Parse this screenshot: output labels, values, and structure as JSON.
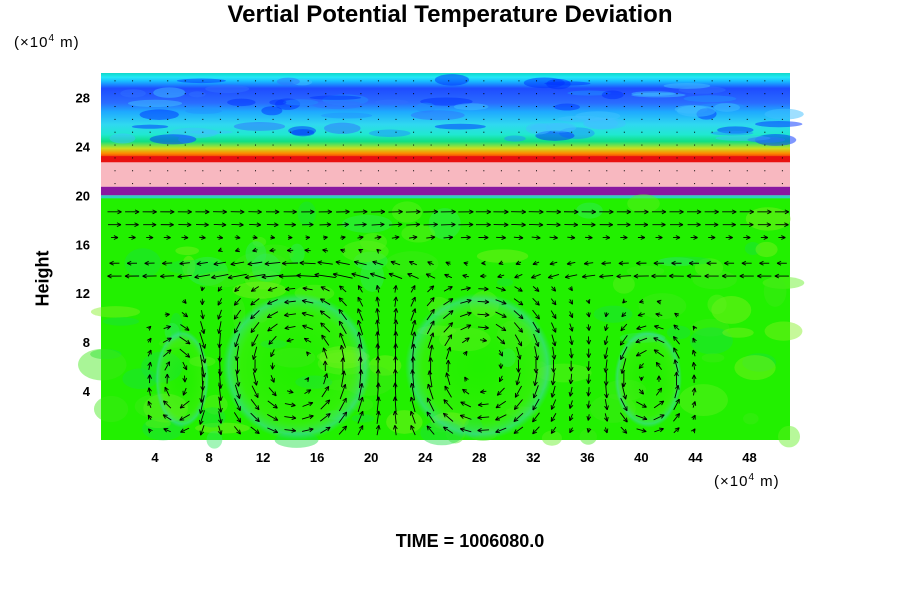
{
  "chart_data": {
    "type": "heatmap",
    "title": "Vertial Potential Temperature Deviation",
    "ylabel": "Height",
    "xlabel": "",
    "y_unit_prefix": "(×10",
    "y_unit_exp": "4",
    "y_unit_suffix": " m)",
    "x_unit_prefix": "(×10",
    "x_unit_exp": "4",
    "x_unit_suffix": " m)",
    "footer": "TIME = 1006080.0",
    "xlim": [
      0,
      51
    ],
    "ylim": [
      0,
      30
    ],
    "x_ticks": [
      4,
      8,
      12,
      16,
      20,
      24,
      28,
      32,
      36,
      40,
      44,
      48
    ],
    "y_ticks": [
      4,
      8,
      12,
      16,
      20,
      24,
      28
    ],
    "grid": false,
    "overlay": "velocity vectors (arrows)",
    "layers": [
      {
        "name": "upper-blue",
        "y_range": [
          24,
          30
        ],
        "color": "#1e5cff"
      },
      {
        "name": "cyan-band",
        "y_range": [
          23,
          24.5
        ],
        "color": "#22d8f0"
      },
      {
        "name": "red-stripe",
        "y_range": [
          22.7,
          23.2
        ],
        "color": "#e81010"
      },
      {
        "name": "pink-band",
        "y_range": [
          20.7,
          22.7
        ],
        "color": "#f8b8c0"
      },
      {
        "name": "purple-band",
        "y_range": [
          20.0,
          20.7
        ],
        "color": "#8a18a0"
      },
      {
        "name": "lower-green",
        "y_range": [
          0,
          20
        ],
        "color": "#22f000"
      }
    ],
    "circulation_cells": [
      {
        "center_x": 14.5,
        "center_y": 6,
        "width": 11,
        "height": 12
      },
      {
        "center_x": 28,
        "center_y": 6,
        "width": 11,
        "height": 12
      },
      {
        "center_x": 40.5,
        "center_y": 5,
        "width": 5,
        "height": 8
      },
      {
        "center_x": 6,
        "center_y": 5,
        "width": 4,
        "height": 8
      }
    ]
  }
}
